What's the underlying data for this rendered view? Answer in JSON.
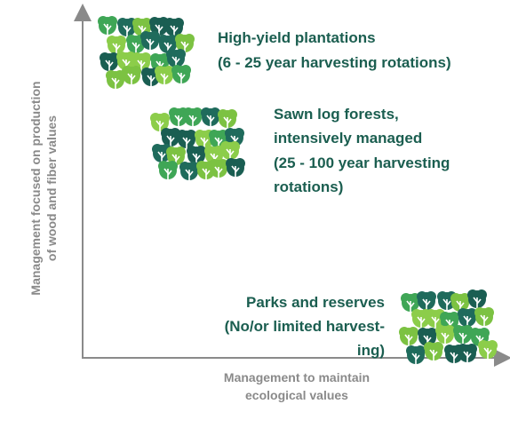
{
  "axes": {
    "y_label": [
      "Management focused on production",
      "of wood and fiber values"
    ],
    "x_label": [
      "Management to maintain",
      "ecological values"
    ]
  },
  "nodes": [
    {
      "label": [
        "High-yield plantations",
        "(6 - 25 year harvesting rotations)"
      ]
    },
    {
      "label": [
        "Sawn log forests,",
        "intensively managed",
        "(25 - 100 year harvesting",
        "rotations)"
      ]
    },
    {
      "label": [
        "Parks and reserves",
        "(No/or limited harvest-",
        "ing)"
      ]
    }
  ]
}
